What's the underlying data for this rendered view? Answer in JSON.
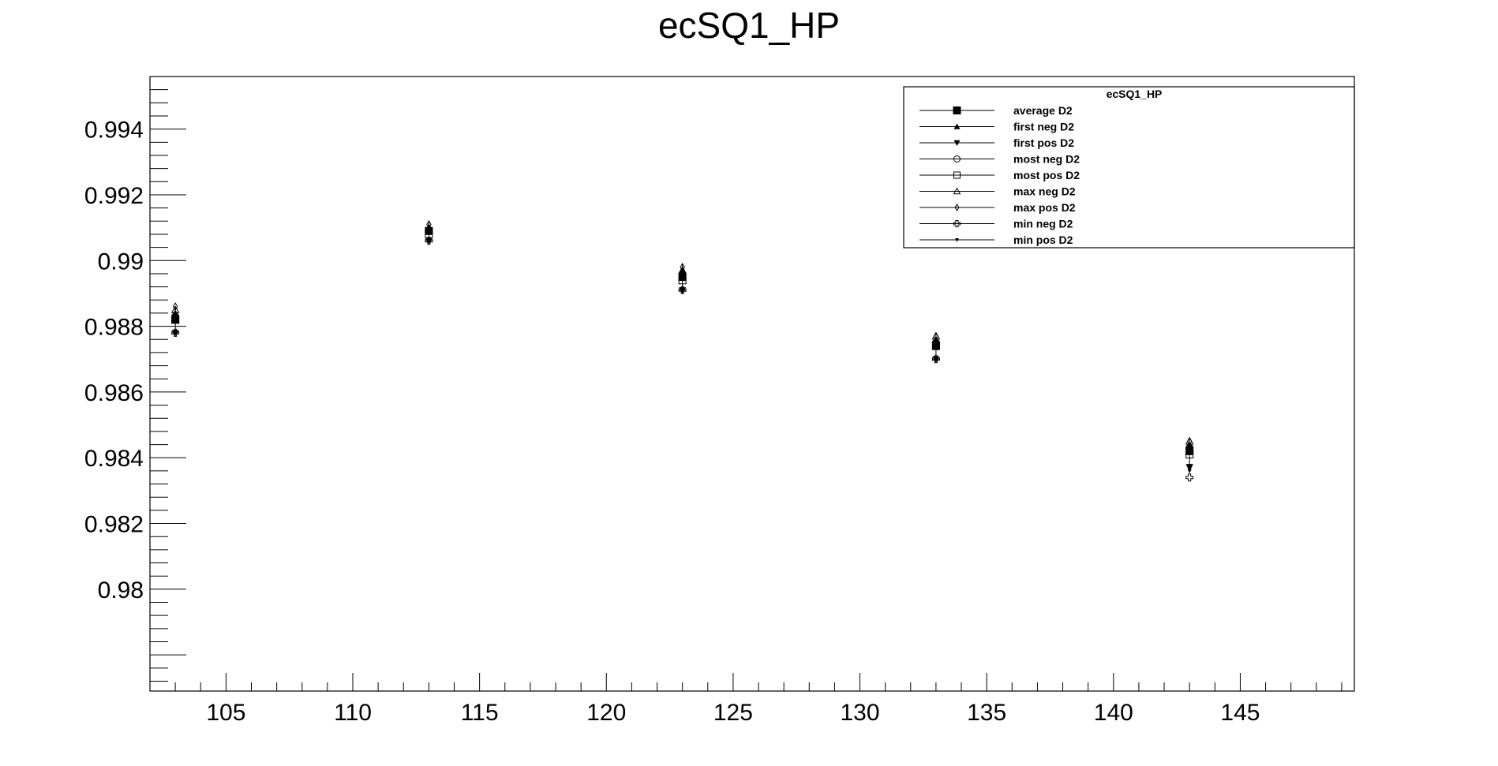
{
  "chart_data": {
    "type": "scatter",
    "title": "ecSQ1_HP",
    "xlabel": "",
    "ylabel": "",
    "xlim": [
      102,
      149.5
    ],
    "ylim": [
      0.9769,
      0.9956
    ],
    "x_ticks": [
      105,
      110,
      115,
      120,
      125,
      130,
      135,
      140,
      145
    ],
    "y_ticks": [
      0.98,
      0.982,
      0.984,
      0.986,
      0.988,
      0.99,
      0.992,
      0.994
    ],
    "x_tick_labels": [
      "105",
      "110",
      "115",
      "120",
      "125",
      "130",
      "135",
      "140",
      "145"
    ],
    "y_tick_labels": [
      "0.98",
      "0.982",
      "0.984",
      "0.986",
      "0.988",
      "0.99",
      "0.992",
      "0.994"
    ],
    "grid": false,
    "legend": {
      "title": "ecSQ1_HP",
      "placement": "top-right"
    },
    "x": [
      103,
      113,
      123,
      133,
      143
    ],
    "series": [
      {
        "name": "average D2",
        "marker": "filled-square",
        "values": [
          0.9882,
          0.9909,
          0.9895,
          0.9874,
          0.9842
        ],
        "errors": [
          0.0004,
          0.0003,
          0.0004,
          0.0004,
          0.0004
        ]
      },
      {
        "name": "first neg D2",
        "marker": "filled-triangle-up",
        "values": [
          0.9884,
          0.991,
          0.9897,
          0.9876,
          0.9844
        ]
      },
      {
        "name": "first pos D2",
        "marker": "filled-triangle-down",
        "values": [
          0.9878,
          0.9906,
          0.9891,
          0.987,
          0.9837
        ]
      },
      {
        "name": "most neg D2",
        "marker": "open-circle",
        "values": [
          0.9883,
          0.9909,
          0.9895,
          0.9875,
          0.9843
        ]
      },
      {
        "name": "most pos D2",
        "marker": "open-square",
        "values": [
          0.9882,
          0.9908,
          0.9894,
          0.9874,
          0.9841
        ]
      },
      {
        "name": "max neg D2",
        "marker": "open-triangle-up",
        "values": [
          0.9885,
          0.991,
          0.9897,
          0.9877,
          0.9845
        ]
      },
      {
        "name": "max pos D2",
        "marker": "open-diamond",
        "values": [
          0.9886,
          0.9911,
          0.9898,
          0.9877,
          0.9845
        ]
      },
      {
        "name": "min neg D2",
        "marker": "open-cross",
        "values": [
          0.9878,
          0.9906,
          0.9891,
          0.987,
          0.9834
        ]
      },
      {
        "name": "min pos D2",
        "marker": "filled-tri-small",
        "values": [
          0.9878,
          0.9906,
          0.9891,
          0.987,
          0.9836
        ]
      }
    ]
  }
}
